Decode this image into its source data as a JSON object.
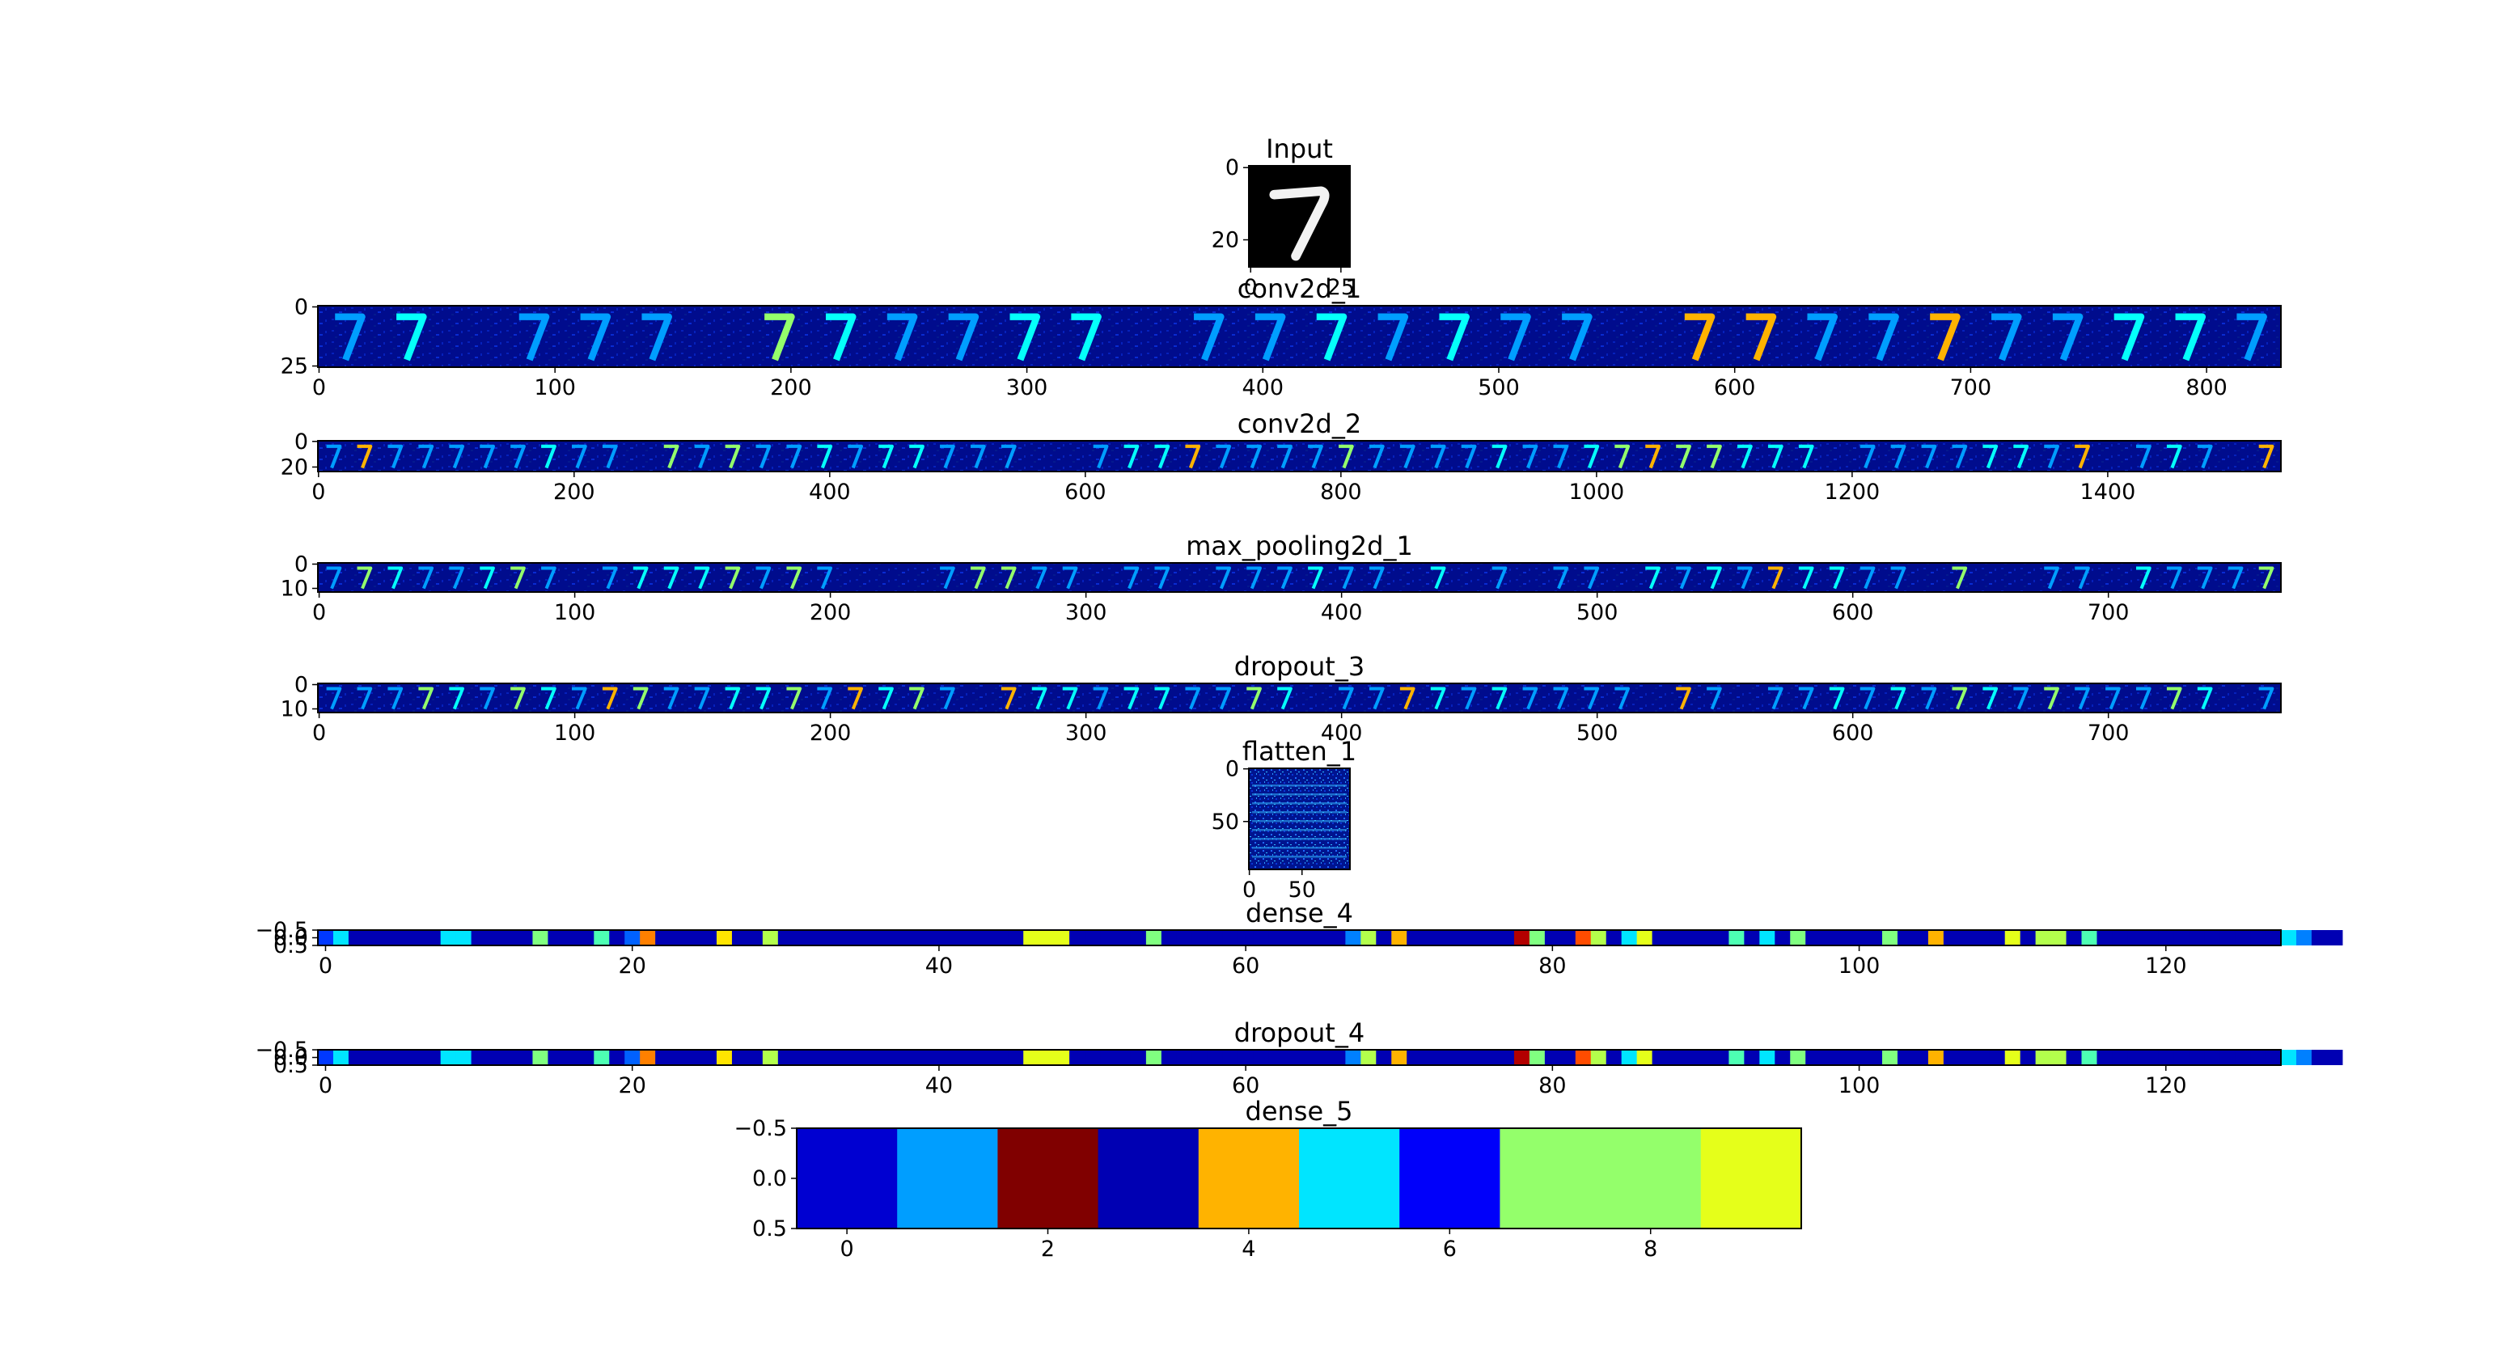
{
  "chart_data": [
    {
      "type": "heatmap",
      "title": "Input",
      "cols": 28,
      "rows": 28,
      "xlim": [
        -0.5,
        27.5
      ],
      "ylim": [
        -0.5,
        27.5
      ],
      "x_ticks": [
        0,
        25
      ],
      "y_ticks": [
        0,
        20
      ],
      "colormap": "gray",
      "content": "MNIST digit 7"
    },
    {
      "type": "heatmap",
      "title": "conv2d_1",
      "cols": 832,
      "rows": 26,
      "xlim": [
        -0.5,
        831.5
      ],
      "ylim": [
        -0.5,
        25.5
      ],
      "x_ticks": [
        0,
        100,
        200,
        300,
        400,
        500,
        600,
        700,
        800
      ],
      "y_ticks": [
        0,
        25
      ],
      "colormap": "jet",
      "channels": 32,
      "content": "tiled feature maps of digit 7"
    },
    {
      "type": "heatmap",
      "title": "conv2d_2",
      "cols": 1536,
      "rows": 24,
      "xlim": [
        -0.5,
        1535.5
      ],
      "ylim": [
        -0.5,
        23.5
      ],
      "x_ticks": [
        0,
        200,
        400,
        600,
        800,
        1000,
        1200,
        1400
      ],
      "y_ticks": [
        0,
        20
      ],
      "colormap": "jet",
      "channels": 64,
      "content": "tiled feature maps of digit 7"
    },
    {
      "type": "heatmap",
      "title": "max_pooling2d_1",
      "cols": 768,
      "rows": 12,
      "xlim": [
        -0.5,
        767.5
      ],
      "ylim": [
        -0.5,
        11.5
      ],
      "x_ticks": [
        0,
        100,
        200,
        300,
        400,
        500,
        600,
        700
      ],
      "y_ticks": [
        0,
        10
      ],
      "colormap": "jet",
      "channels": 64,
      "content": "tiled feature maps of digit 7"
    },
    {
      "type": "heatmap",
      "title": "dropout_3",
      "cols": 768,
      "rows": 12,
      "xlim": [
        -0.5,
        767.5
      ],
      "ylim": [
        -0.5,
        11.5
      ],
      "x_ticks": [
        0,
        100,
        200,
        300,
        400,
        500,
        600,
        700
      ],
      "y_ticks": [
        0,
        10
      ],
      "colormap": "jet",
      "channels": 64,
      "content": "tiled feature maps of digit 7"
    },
    {
      "type": "heatmap",
      "title": "flatten_1",
      "cols": 96,
      "rows": 96,
      "xlim": [
        -0.5,
        95.5
      ],
      "ylim": [
        -0.5,
        95.5
      ],
      "x_ticks": [
        0,
        50
      ],
      "y_ticks": [
        0,
        50
      ],
      "colormap": "jet",
      "content": "reshaped flattened activations"
    },
    {
      "type": "heatmap",
      "title": "dense_4",
      "cols": 128,
      "rows": 1,
      "xlim": [
        -0.5,
        127.5
      ],
      "ylim": [
        -0.5,
        0.5
      ],
      "x_ticks": [
        0,
        20,
        40,
        60,
        80,
        100,
        120
      ],
      "y_tick_labels": [
        "−0.5",
        "0.0",
        "0.5"
      ],
      "colormap": "jet",
      "values": [
        0.18,
        0.35,
        0.05,
        0.05,
        0.05,
        0.05,
        0.05,
        0.05,
        0.35,
        0.35,
        0.05,
        0.05,
        0.05,
        0.05,
        0.5,
        0.05,
        0.05,
        0.05,
        0.45,
        0.05,
        0.22,
        0.75,
        0.05,
        0.05,
        0.05,
        0.05,
        0.65,
        0.05,
        0.05,
        0.55,
        0.05,
        0.05,
        0.05,
        0.05,
        0.05,
        0.05,
        0.05,
        0.05,
        0.05,
        0.05,
        0.05,
        0.05,
        0.05,
        0.05,
        0.05,
        0.05,
        0.6,
        0.6,
        0.6,
        0.05,
        0.05,
        0.05,
        0.05,
        0.05,
        0.5,
        0.05,
        0.05,
        0.05,
        0.05,
        0.05,
        0.05,
        0.05,
        0.05,
        0.05,
        0.05,
        0.05,
        0.05,
        0.25,
        0.55,
        0.05,
        0.7,
        0.05,
        0.05,
        0.05,
        0.05,
        0.05,
        0.05,
        0.05,
        0.95,
        0.5,
        0.05,
        0.05,
        0.8,
        0.55,
        0.05,
        0.35,
        0.6,
        0.05,
        0.05,
        0.05,
        0.05,
        0.05,
        0.45,
        0.05,
        0.35,
        0.05,
        0.5,
        0.05,
        0.05,
        0.05,
        0.05,
        0.05,
        0.5,
        0.05,
        0.05,
        0.7,
        0.05,
        0.05,
        0.05,
        0.05,
        0.6,
        0.05,
        0.55,
        0.55,
        0.05,
        0.45,
        0.05,
        0.05,
        0.05,
        0.05,
        0.05,
        0.05,
        0.05,
        0.05,
        0.05,
        0.05,
        0.05,
        0.05,
        0.35,
        0.25,
        0.05,
        0.05
      ],
      "value_range": [
        0,
        1
      ]
    },
    {
      "type": "heatmap",
      "title": "dropout_4",
      "cols": 128,
      "rows": 1,
      "xlim": [
        -0.5,
        127.5
      ],
      "ylim": [
        -0.5,
        0.5
      ],
      "x_ticks": [
        0,
        20,
        40,
        60,
        80,
        100,
        120
      ],
      "y_tick_labels": [
        "−0.5",
        "0.0",
        "0.5"
      ],
      "colormap": "jet",
      "values": [
        0.18,
        0.35,
        0.05,
        0.05,
        0.05,
        0.05,
        0.05,
        0.05,
        0.35,
        0.35,
        0.05,
        0.05,
        0.05,
        0.05,
        0.5,
        0.05,
        0.05,
        0.05,
        0.45,
        0.05,
        0.22,
        0.75,
        0.05,
        0.05,
        0.05,
        0.05,
        0.65,
        0.05,
        0.05,
        0.55,
        0.05,
        0.05,
        0.05,
        0.05,
        0.05,
        0.05,
        0.05,
        0.05,
        0.05,
        0.05,
        0.05,
        0.05,
        0.05,
        0.05,
        0.05,
        0.05,
        0.6,
        0.6,
        0.6,
        0.05,
        0.05,
        0.05,
        0.05,
        0.05,
        0.5,
        0.05,
        0.05,
        0.05,
        0.05,
        0.05,
        0.05,
        0.05,
        0.05,
        0.05,
        0.05,
        0.05,
        0.05,
        0.25,
        0.55,
        0.05,
        0.7,
        0.05,
        0.05,
        0.05,
        0.05,
        0.05,
        0.05,
        0.05,
        0.95,
        0.5,
        0.05,
        0.05,
        0.8,
        0.55,
        0.05,
        0.35,
        0.6,
        0.05,
        0.05,
        0.05,
        0.05,
        0.05,
        0.45,
        0.05,
        0.35,
        0.05,
        0.5,
        0.05,
        0.05,
        0.05,
        0.05,
        0.05,
        0.5,
        0.05,
        0.05,
        0.7,
        0.05,
        0.05,
        0.05,
        0.05,
        0.6,
        0.05,
        0.55,
        0.55,
        0.05,
        0.45,
        0.05,
        0.05,
        0.05,
        0.05,
        0.05,
        0.05,
        0.05,
        0.05,
        0.05,
        0.05,
        0.05,
        0.05,
        0.35,
        0.25,
        0.05,
        0.05
      ],
      "value_range": [
        0,
        1
      ]
    },
    {
      "type": "heatmap",
      "title": "dense_5",
      "cols": 10,
      "rows": 1,
      "xlim": [
        -0.5,
        9.5
      ],
      "ylim": [
        -0.5,
        0.5
      ],
      "x_ticks": [
        0,
        2,
        4,
        6,
        8
      ],
      "y_tick_labels": [
        "−0.5",
        "0.0",
        "0.5"
      ],
      "colormap": "jet",
      "values": [
        0.08,
        0.28,
        1.0,
        0.05,
        0.7,
        0.35,
        0.12,
        0.52,
        0.52,
        0.6
      ],
      "value_range": [
        0,
        1
      ]
    }
  ]
}
